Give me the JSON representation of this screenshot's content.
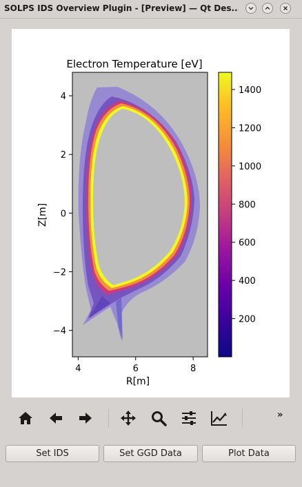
{
  "window": {
    "title": "SOLPS IDS Overview Plugin - [Preview] — Qt Des..."
  },
  "plot": {
    "title": "Electron Temperature [eV]",
    "xlabel": "R[m]",
    "ylabel": "Z[m]",
    "xticks": [
      "4",
      "6",
      "8"
    ],
    "yticks": [
      "4",
      "2",
      "0",
      "−2",
      "−4"
    ],
    "colorbar_ticks": [
      "1400",
      "1200",
      "1000",
      "800",
      "600",
      "400",
      "200"
    ],
    "colormap": "plasma",
    "background_color": "#bebebe"
  },
  "chart_data": {
    "type": "heatmap",
    "title": "Electron Temperature [eV]",
    "xlabel": "R[m]",
    "ylabel": "Z[m]",
    "xlim": [
      3.8,
      8.5
    ],
    "ylim": [
      -4.9,
      4.8
    ],
    "colorbar_range": [
      0,
      1490
    ],
    "colorbar_ticks": [
      200,
      400,
      600,
      800,
      1000,
      1200,
      1400
    ],
    "colormap": "plasma"
  },
  "toolbar": {
    "icons": [
      "home-icon",
      "back-arrow-icon",
      "forward-arrow-icon",
      "pan-icon",
      "zoom-icon",
      "configure-subplots-icon",
      "edit-axis-icon"
    ],
    "overflow_label": "»"
  },
  "buttons": {
    "set_ids": "Set IDS",
    "set_ggd": "Set GGD Data",
    "plot_data": "Plot Data"
  }
}
